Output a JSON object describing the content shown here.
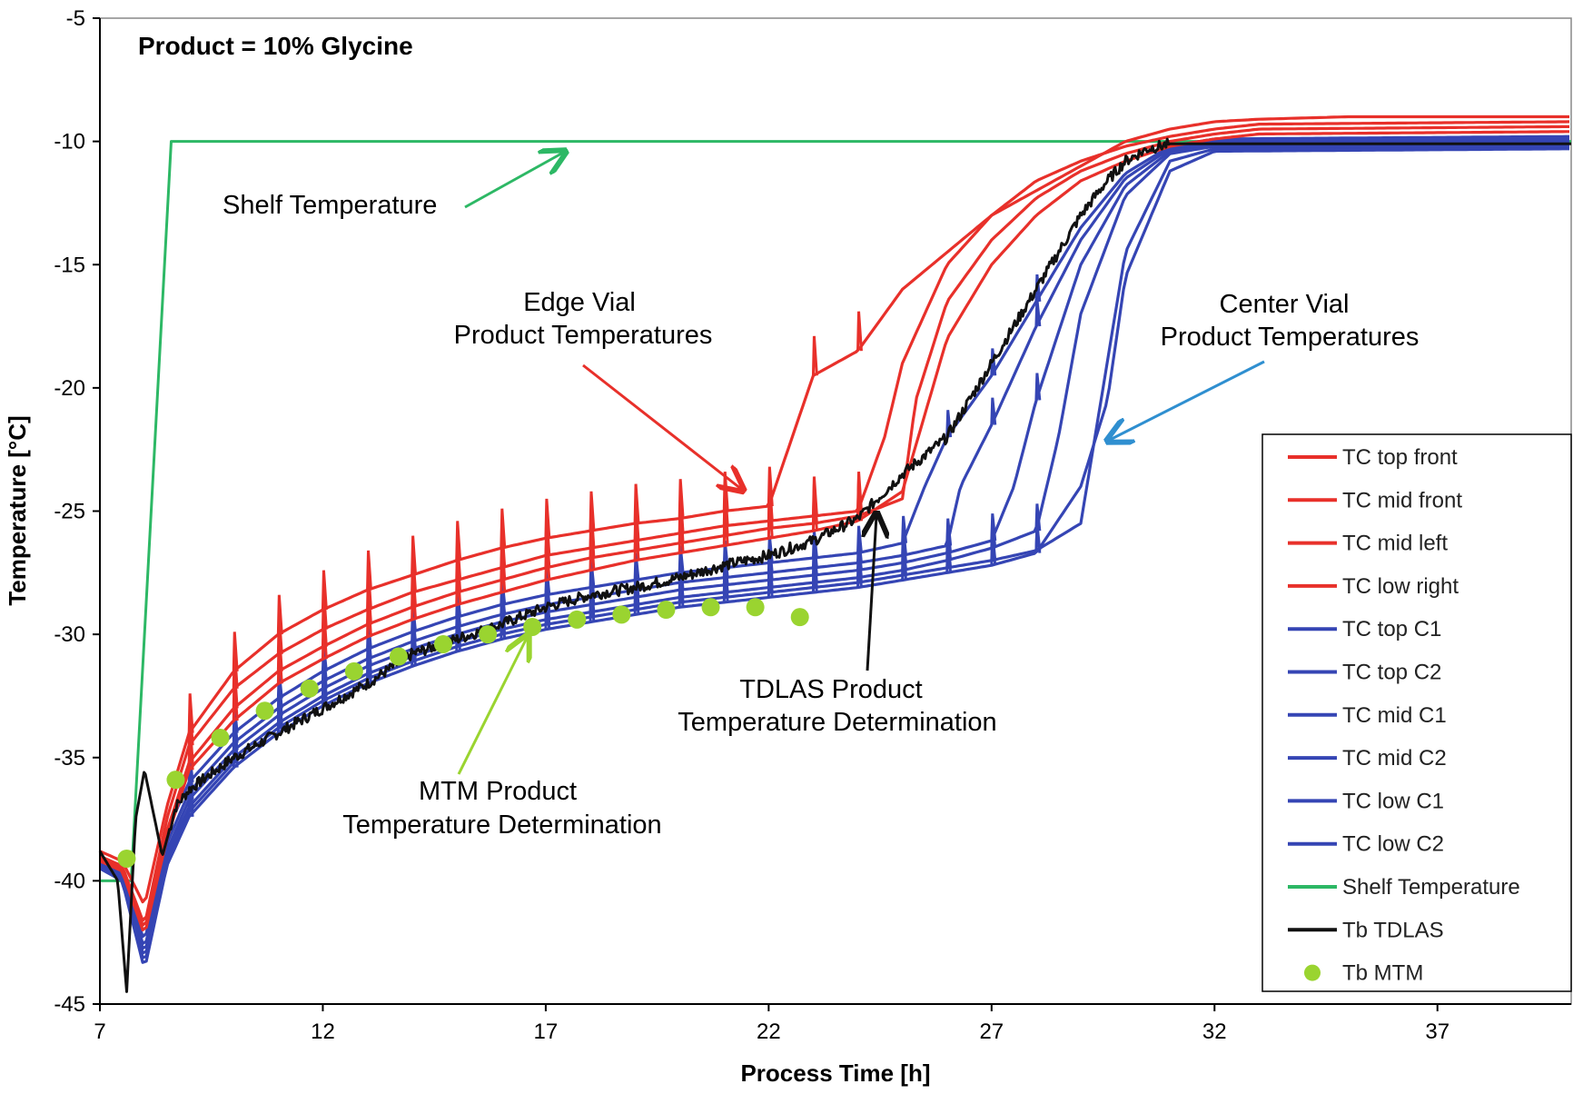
{
  "chart_data": {
    "type": "line",
    "title": "Product = 10% Glycine",
    "xlabel": "Process Time [h]",
    "ylabel": "Temperature [°C]",
    "xlim": [
      7,
      40
    ],
    "ylim": [
      -45,
      -5
    ],
    "xticks": [
      "7",
      "12",
      "17",
      "22",
      "27",
      "32",
      "37"
    ],
    "yticks": [
      "-5",
      "-10",
      "-15",
      "-20",
      "-25",
      "-30",
      "-35",
      "-40",
      "-45"
    ],
    "colors": {
      "red": "#e8302a",
      "blue": "#3545b4",
      "green": "#2db865",
      "black": "#111111",
      "lime": "#9ad430",
      "cyan_arrow": "#2f8fd0"
    },
    "series": [
      {
        "name": "TC top front",
        "color": "#e8302a",
        "x": [
          7,
          7.5,
          8,
          8.5,
          9,
          10,
          11,
          12,
          13,
          14,
          15,
          16,
          17,
          18,
          19,
          20,
          21,
          22,
          23,
          24,
          25,
          26,
          27,
          28,
          29,
          30,
          31,
          32,
          33,
          35,
          40
        ],
        "y": [
          -38.8,
          -39.2,
          -41,
          -37,
          -34,
          -31.5,
          -30,
          -29,
          -28.2,
          -27.6,
          -27,
          -26.5,
          -26.1,
          -25.8,
          -25.5,
          -25.3,
          -25,
          -24.8,
          -19.5,
          -18.5,
          -16,
          -14.5,
          -13,
          -12,
          -11,
          -10,
          -9.5,
          -9.2,
          -9.1,
          -9,
          -9
        ]
      },
      {
        "name": "TC mid front",
        "color": "#e8302a",
        "x": [
          7,
          7.5,
          8,
          8.5,
          9,
          10,
          11,
          12,
          13,
          14,
          15,
          16,
          17,
          18,
          19,
          20,
          21,
          22,
          23,
          24,
          24.6,
          25,
          26,
          27,
          28,
          29,
          30,
          31,
          32,
          33,
          40
        ],
        "y": [
          -39,
          -39.4,
          -41.8,
          -37.5,
          -34.5,
          -32.2,
          -30.8,
          -29.8,
          -29,
          -28.3,
          -27.8,
          -27.3,
          -26.8,
          -26.5,
          -26.2,
          -25.9,
          -25.6,
          -25.4,
          -25.2,
          -25,
          -22,
          -19,
          -15,
          -13,
          -11.6,
          -10.8,
          -10.2,
          -9.8,
          -9.5,
          -9.3,
          -9.2
        ]
      },
      {
        "name": "TC mid left",
        "color": "#e8302a",
        "x": [
          7,
          7.5,
          8,
          8.5,
          9,
          10,
          11,
          12,
          13,
          14,
          15,
          16,
          17,
          18,
          19,
          20,
          21,
          22,
          23,
          24,
          25,
          25.3,
          26,
          27,
          28,
          29,
          30,
          31,
          32,
          33,
          40
        ],
        "y": [
          -39.1,
          -39.5,
          -42,
          -38,
          -35.2,
          -33,
          -31.5,
          -30.5,
          -29.6,
          -28.9,
          -28.3,
          -27.8,
          -27.3,
          -26.9,
          -26.6,
          -26.3,
          -26,
          -25.7,
          -25.5,
          -25.2,
          -24.5,
          -20.5,
          -16.5,
          -14,
          -12.3,
          -11.2,
          -10.5,
          -10,
          -9.7,
          -9.5,
          -9.4
        ]
      },
      {
        "name": "TC low right",
        "color": "#e8302a",
        "x": [
          7,
          7.5,
          8,
          8.5,
          9,
          10,
          11,
          12,
          13,
          14,
          15,
          16,
          17,
          18,
          19,
          20,
          21,
          22,
          23,
          24,
          25,
          26,
          27,
          28,
          29,
          30,
          31,
          32,
          33,
          40
        ],
        "y": [
          -39.2,
          -39.6,
          -42.2,
          -38.3,
          -35.5,
          -33.5,
          -32,
          -31,
          -30.1,
          -29.4,
          -28.8,
          -28.3,
          -27.8,
          -27.4,
          -27,
          -26.7,
          -26.4,
          -26.1,
          -25.8,
          -25.4,
          -24.2,
          -18,
          -15,
          -13,
          -11.6,
          -10.8,
          -10.2,
          -9.9,
          -9.7,
          -9.6
        ]
      },
      {
        "name": "TC top C1",
        "color": "#3545b4",
        "x": [
          7,
          7.5,
          8,
          8.5,
          9,
          10,
          11,
          12,
          13,
          14,
          15,
          16,
          17,
          18,
          19,
          20,
          21,
          22,
          23,
          24,
          25,
          25.5,
          26,
          27,
          28,
          29,
          30,
          31,
          32,
          40
        ],
        "y": [
          -39,
          -39.5,
          -42.5,
          -38,
          -36,
          -34,
          -32.6,
          -31.5,
          -30.6,
          -29.9,
          -29.3,
          -28.8,
          -28.4,
          -28.1,
          -27.8,
          -27.5,
          -27.3,
          -27.1,
          -26.9,
          -26.7,
          -26.3,
          -24,
          -22,
          -19.5,
          -16.5,
          -13.5,
          -11.3,
          -10.2,
          -9.9,
          -9.8
        ]
      },
      {
        "name": "TC top C2",
        "color": "#3545b4",
        "x": [
          7,
          7.5,
          8,
          8.5,
          9,
          10,
          11,
          12,
          13,
          14,
          15,
          16,
          17,
          18,
          19,
          20,
          21,
          22,
          23,
          24,
          25,
          26,
          26.3,
          27,
          28,
          29,
          30,
          31,
          32,
          40
        ],
        "y": [
          -39.1,
          -39.6,
          -42.8,
          -38.5,
          -36.4,
          -34.4,
          -33,
          -31.9,
          -31,
          -30.3,
          -29.7,
          -29.2,
          -28.8,
          -28.5,
          -28.2,
          -27.9,
          -27.7,
          -27.5,
          -27.3,
          -27.1,
          -26.8,
          -26.4,
          -24,
          -21.5,
          -17.5,
          -14,
          -11.5,
          -10.3,
          -10,
          -9.9
        ]
      },
      {
        "name": "TC mid C1",
        "color": "#3545b4",
        "x": [
          7,
          7.5,
          8,
          8.5,
          9,
          10,
          11,
          12,
          13,
          14,
          15,
          16,
          17,
          18,
          19,
          20,
          21,
          22,
          23,
          24,
          25,
          26,
          27,
          27.5,
          28,
          29,
          30,
          31,
          32,
          40
        ],
        "y": [
          -39.2,
          -39.7,
          -43,
          -38.8,
          -36.7,
          -34.7,
          -33.3,
          -32.2,
          -31.3,
          -30.6,
          -30,
          -29.5,
          -29.1,
          -28.8,
          -28.5,
          -28.2,
          -28,
          -27.8,
          -27.6,
          -27.4,
          -27.1,
          -26.7,
          -26.2,
          -24,
          -20.5,
          -15,
          -11.8,
          -10.4,
          -10.1,
          -10
        ]
      },
      {
        "name": "TC mid C2",
        "color": "#3545b4",
        "x": [
          7,
          7.5,
          8,
          8.5,
          9,
          10,
          11,
          12,
          13,
          14,
          15,
          16,
          17,
          18,
          19,
          20,
          21,
          22,
          23,
          24,
          25,
          26,
          27,
          28,
          28.5,
          29,
          30,
          31,
          32,
          40
        ],
        "y": [
          -39.3,
          -39.8,
          -43.2,
          -39,
          -37,
          -35,
          -33.6,
          -32.5,
          -31.6,
          -30.9,
          -30.3,
          -29.8,
          -29.4,
          -29.1,
          -28.8,
          -28.5,
          -28.3,
          -28.1,
          -27.9,
          -27.7,
          -27.4,
          -27,
          -26.5,
          -25.8,
          -22,
          -17,
          -12.2,
          -10.5,
          -10.2,
          -10.1
        ]
      },
      {
        "name": "TC low C1",
        "color": "#3545b4",
        "x": [
          7,
          7.5,
          8,
          8.5,
          9,
          10,
          11,
          12,
          13,
          14,
          15,
          16,
          17,
          18,
          19,
          20,
          21,
          22,
          23,
          24,
          25,
          26,
          27,
          28,
          29,
          29.5,
          30,
          31,
          32,
          40
        ],
        "y": [
          -39.4,
          -39.9,
          -43.4,
          -39.2,
          -37.2,
          -35.2,
          -33.8,
          -32.7,
          -31.8,
          -31.1,
          -30.5,
          -30,
          -29.6,
          -29.3,
          -29,
          -28.7,
          -28.5,
          -28.3,
          -28.1,
          -27.9,
          -27.6,
          -27.3,
          -27,
          -26.6,
          -25.5,
          -20,
          -14.5,
          -10.8,
          -10.3,
          -10.2
        ]
      },
      {
        "name": "TC low C2",
        "color": "#3545b4",
        "x": [
          7,
          7.5,
          8,
          8.5,
          9,
          10,
          11,
          12,
          13,
          14,
          15,
          16,
          17,
          18,
          19,
          20,
          21,
          22,
          23,
          24,
          25,
          26,
          27,
          28,
          29,
          29.6,
          30,
          31,
          32,
          40
        ],
        "y": [
          -39.5,
          -40,
          -43.6,
          -39.4,
          -37.4,
          -35.4,
          -34,
          -32.9,
          -32,
          -31.3,
          -30.7,
          -30.2,
          -29.8,
          -29.5,
          -29.2,
          -28.9,
          -28.7,
          -28.5,
          -28.3,
          -28.1,
          -27.8,
          -27.5,
          -27.2,
          -26.7,
          -24,
          -20.5,
          -15.5,
          -11.2,
          -10.4,
          -10.3
        ]
      },
      {
        "name": "Shelf Temperature",
        "color": "#2db865",
        "x": [
          7,
          7.7,
          8.6,
          30.5,
          40
        ],
        "y": [
          -40,
          -40,
          -10,
          -10,
          -10
        ]
      },
      {
        "name": "Tb TDLAS",
        "color": "#111111",
        "x": [
          7,
          7.4,
          7.6,
          7.8,
          8,
          8.4,
          8.7,
          9,
          10,
          11,
          12,
          13,
          14,
          15,
          16,
          17,
          18,
          19,
          20,
          21,
          22,
          23,
          24,
          25,
          26,
          27,
          28,
          28.5,
          29,
          29.5,
          30,
          30.5,
          31,
          32,
          35,
          40
        ],
        "y": [
          -38.8,
          -40,
          -44.5,
          -37.5,
          -35.5,
          -39,
          -37,
          -36.3,
          -35,
          -34,
          -33,
          -32,
          -30.8,
          -30.2,
          -29.6,
          -28.9,
          -28.4,
          -28.1,
          -27.7,
          -27.2,
          -26.8,
          -26.2,
          -25.3,
          -23.5,
          -22,
          -19,
          -16,
          -14.5,
          -13,
          -11.8,
          -10.8,
          -10.3,
          -10.1,
          -10.1,
          -10.1,
          -10.1
        ]
      },
      {
        "name": "Tb MTM",
        "color": "#9ad430",
        "marker": "circle",
        "x": [
          7.6,
          8.7,
          9.7,
          10.7,
          11.7,
          12.7,
          13.7,
          14.7,
          15.7,
          16.7,
          17.7,
          18.7,
          19.7,
          20.7,
          21.7,
          22.7
        ],
        "y": [
          -39.1,
          -35.9,
          -34.2,
          -33.1,
          -32.2,
          -31.5,
          -30.9,
          -30.4,
          -30,
          -29.7,
          -29.4,
          -29.2,
          -29,
          -28.9,
          -28.9,
          -29.3
        ]
      }
    ],
    "annotations": {
      "shelf": "Shelf Temperature",
      "edge_line1": "Edge Vial",
      "edge_line2": "Product Temperatures",
      "center_line1": "Center Vial",
      "center_line2": "Product Temperatures",
      "tdlas_line1": "TDLAS Product",
      "tdlas_line2": "Temperature Determination",
      "mtm_line1": "MTM Product",
      "mtm_line2": "Temperature Determination"
    },
    "legend_position": "right"
  }
}
